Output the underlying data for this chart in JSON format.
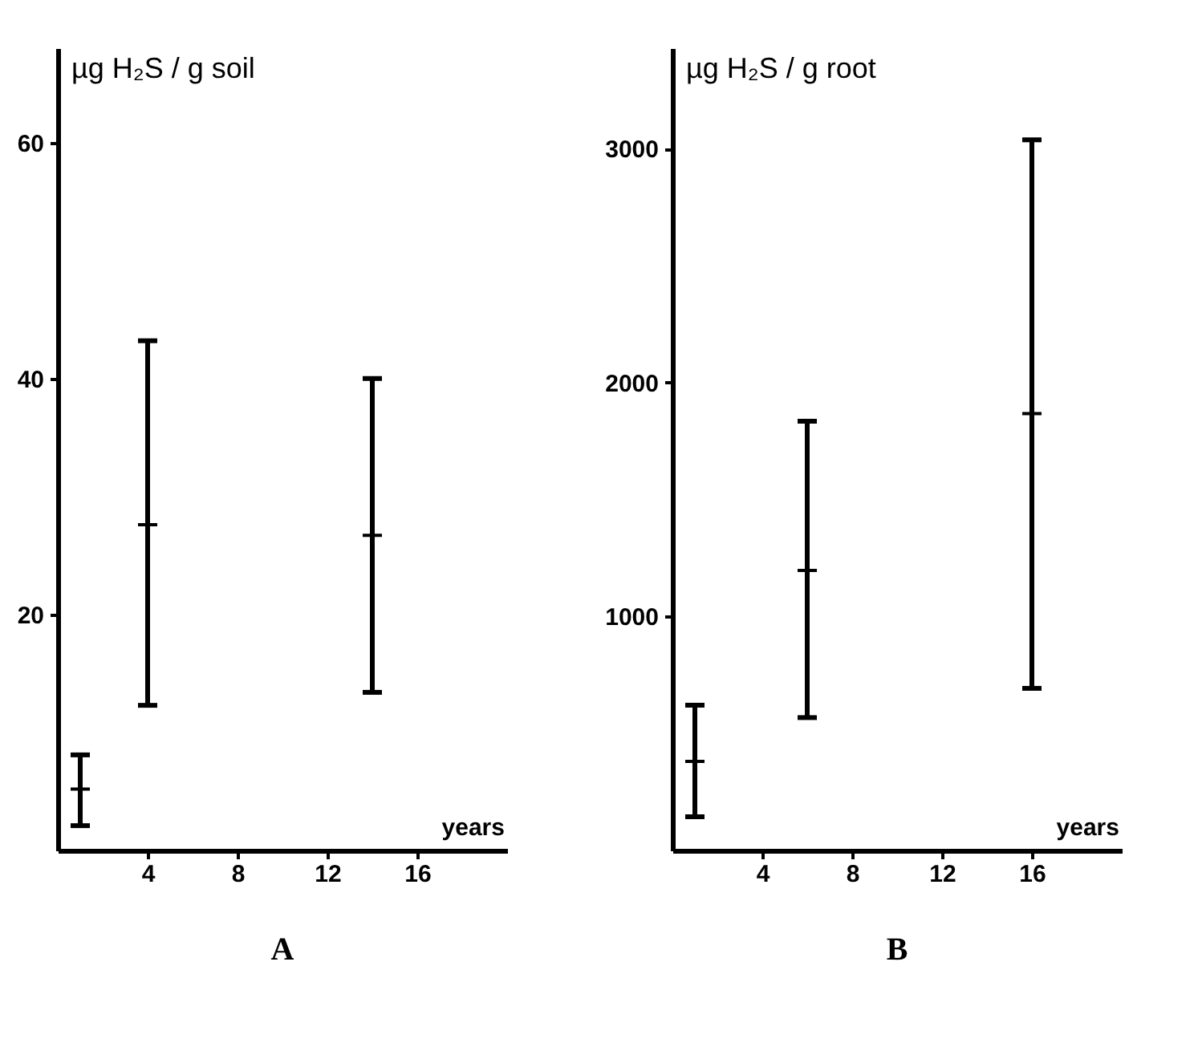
{
  "chart_data": [
    {
      "type": "scatter",
      "title": "A",
      "xlabel": "years",
      "ylabel": "µg H₂S / g soil",
      "xlim": [
        0,
        20
      ],
      "ylim": [
        0,
        68
      ],
      "xticks": [
        4,
        8,
        12,
        16
      ],
      "yticks": [
        20,
        40,
        60
      ],
      "grid": false,
      "marker": "cross",
      "series": [
        {
          "color": "#000000",
          "x": [
            1,
            4,
            14
          ],
          "values": [
            5.2,
            27.6,
            26.7
          ],
          "errors": [
            [
              2.1,
              8.1
            ],
            [
              12.3,
              43.2
            ],
            [
              13.4,
              40.0
            ]
          ]
        }
      ]
    },
    {
      "type": "scatter",
      "title": "B",
      "xlabel": "years",
      "ylabel": "µg H₂S / g root",
      "xlim": [
        0,
        20
      ],
      "ylim": [
        0,
        3430
      ],
      "xticks": [
        4,
        8,
        12,
        16
      ],
      "yticks": [
        1000,
        2000,
        3000
      ],
      "grid": false,
      "marker": "cross",
      "series": [
        {
          "color": "#000000",
          "x": [
            1,
            6,
            16
          ],
          "values": [
            381,
            1197,
            1868
          ],
          "errors": [
            [
              144,
              621
            ],
            [
              568,
              1835
            ],
            [
              693,
              3038
            ]
          ]
        }
      ]
    }
  ]
}
